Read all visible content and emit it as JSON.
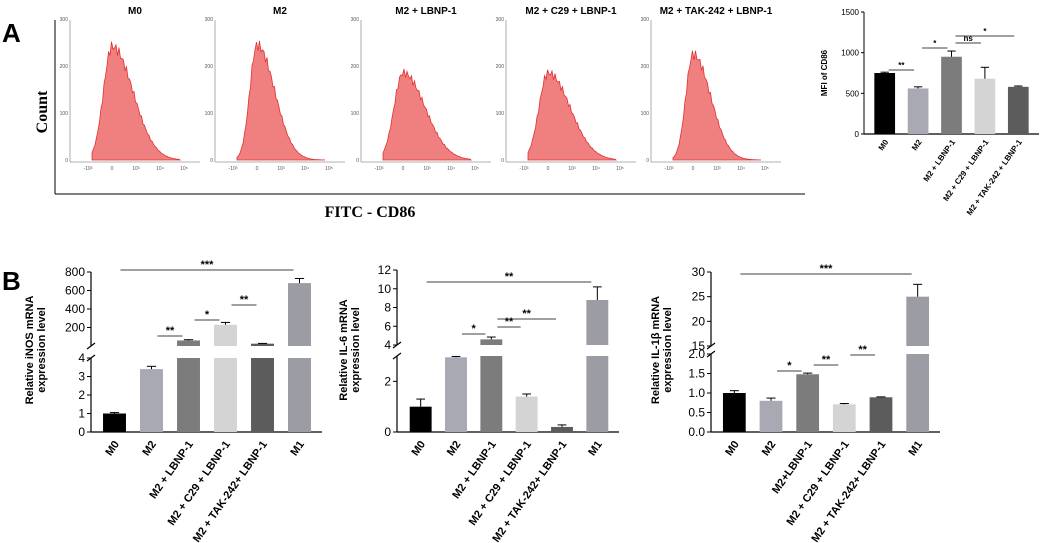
{
  "panels": {
    "a": "A",
    "b": "B"
  },
  "flow": {
    "ylabel": "Count",
    "xlabel": "FITC - CD86",
    "yticks": [
      "0",
      "100",
      "200",
      "300"
    ],
    "xticks": [
      "-10³",
      "0",
      "10³",
      "10⁴",
      "10⁵"
    ],
    "fill_color": "#f08080",
    "line_color": "#e03030",
    "histograms": [
      {
        "title": "M0",
        "peak": 0.86,
        "width": 0.95
      },
      {
        "title": "M2",
        "peak": 0.87,
        "width": 0.8
      },
      {
        "title": "M2 + LBNP-1",
        "peak": 0.66,
        "width": 1.0
      },
      {
        "title": "M2 + C29 + LBNP-1",
        "peak": 0.66,
        "width": 1.0
      },
      {
        "title": "M2 + TAK-242 + LBNP-1",
        "peak": 0.8,
        "width": 0.8
      }
    ]
  },
  "chart_data": [
    {
      "type": "bar",
      "ylabel": "MFI of CD86",
      "categories": [
        "M0",
        "M2",
        "M2 + LBNP-1",
        "M2 + C29 + LBNP-1",
        "M2 + TAK-242 + LBNP-1"
      ],
      "values": [
        750,
        560,
        950,
        680,
        580
      ],
      "errors": [
        10,
        20,
        70,
        140,
        10
      ],
      "colors": [
        "#000000",
        "#a9a9b4",
        "#7c7c7c",
        "#d4d4d4",
        "#5c5c5c"
      ],
      "yticks": [
        "0",
        "500",
        "1000",
        "1500"
      ],
      "ylim": [
        0,
        1500
      ],
      "significance": [
        {
          "from": 0,
          "to": 1,
          "label": "**"
        },
        {
          "from": 1,
          "to": 2,
          "label": "*"
        },
        {
          "from": 2,
          "to": 3,
          "label": "ns"
        },
        {
          "from": 2,
          "to": 4,
          "label": "*"
        }
      ]
    },
    {
      "type": "bar",
      "ylabel": "Relative iNOS mRNA expression level",
      "categories": [
        "M0",
        "M2",
        "M2 + LBNP-1",
        "M2 + C29 + LBNP-1",
        "M2 + TAK-242+ LBNP-1",
        "M1"
      ],
      "values": [
        1.0,
        3.4,
        60,
        230,
        25,
        680
      ],
      "errors": [
        0.05,
        0.15,
        8,
        25,
        3,
        50
      ],
      "colors": [
        "#000000",
        "#a9a9b4",
        "#7c7c7c",
        "#d4d4d4",
        "#5c5c5c",
        "#9c9ca4"
      ],
      "axis_break": [
        4,
        5
      ],
      "lower_yticks": [
        "0",
        "1",
        "2",
        "3",
        "4"
      ],
      "upper_yticks": [
        "200",
        "400",
        "600",
        "800"
      ],
      "lower_ylim": [
        0,
        4
      ],
      "upper_ylim": [
        0,
        800
      ],
      "significance": [
        {
          "from": 1,
          "to": 2,
          "label": "**"
        },
        {
          "from": 2,
          "to": 3,
          "label": "*"
        },
        {
          "from": 3,
          "to": 4,
          "label": "**"
        },
        {
          "from": 0,
          "to": 5,
          "label": "***"
        }
      ]
    },
    {
      "type": "bar",
      "ylabel": "Relative IL-6 mRNA expression level",
      "categories": [
        "M0",
        "M2",
        "M2 + LBNP-1",
        "M2 + C29 + LBNP-1",
        "M2 + TAK-242+ LBNP-1",
        "M1"
      ],
      "values": [
        1.0,
        2.95,
        4.6,
        1.4,
        0.2,
        8.8
      ],
      "errors": [
        0.3,
        0.03,
        0.25,
        0.1,
        0.08,
        1.4
      ],
      "colors": [
        "#000000",
        "#a9a9b4",
        "#7c7c7c",
        "#d4d4d4",
        "#5c5c5c",
        "#9c9ca4"
      ],
      "axis_break": [
        3,
        4
      ],
      "lower_yticks": [
        "0",
        "2"
      ],
      "upper_yticks": [
        "4",
        "6",
        "8",
        "10",
        "12"
      ],
      "lower_ylim": [
        0,
        3
      ],
      "upper_ylim": [
        4,
        12
      ],
      "significance": [
        {
          "from": 1,
          "to": 2,
          "label": "*"
        },
        {
          "from": 2,
          "to": 3,
          "label": "**"
        },
        {
          "from": 2,
          "to": 4,
          "label": "**"
        },
        {
          "from": 0,
          "to": 5,
          "label": "**"
        }
      ]
    },
    {
      "type": "bar",
      "ylabel": "Relative IL-1β mRNA expression level",
      "categories": [
        "M0",
        "M2",
        "M2+LBNP-1",
        "M2 + C29 + LBNP-1",
        "M2 + TAK-242+ LBNP-1",
        "M1"
      ],
      "values": [
        1.0,
        0.8,
        1.48,
        0.71,
        0.89,
        25
      ],
      "errors": [
        0.06,
        0.07,
        0.03,
        0.02,
        0.01,
        2.5
      ],
      "colors": [
        "#000000",
        "#a9a9b4",
        "#7c7c7c",
        "#d4d4d4",
        "#5c5c5c",
        "#9c9ca4"
      ],
      "axis_break": [
        2,
        15
      ],
      "lower_yticks": [
        "0.0",
        "0.5",
        "1.0",
        "1.5",
        "2.0"
      ],
      "upper_yticks": [
        "15",
        "20",
        "25",
        "30"
      ],
      "lower_ylim": [
        0,
        2
      ],
      "upper_ylim": [
        15,
        30
      ],
      "significance": [
        {
          "from": 1,
          "to": 2,
          "label": "*"
        },
        {
          "from": 2,
          "to": 3,
          "label": "**"
        },
        {
          "from": 3,
          "to": 4,
          "label": "**"
        },
        {
          "from": 0,
          "to": 5,
          "label": "***"
        }
      ]
    }
  ]
}
